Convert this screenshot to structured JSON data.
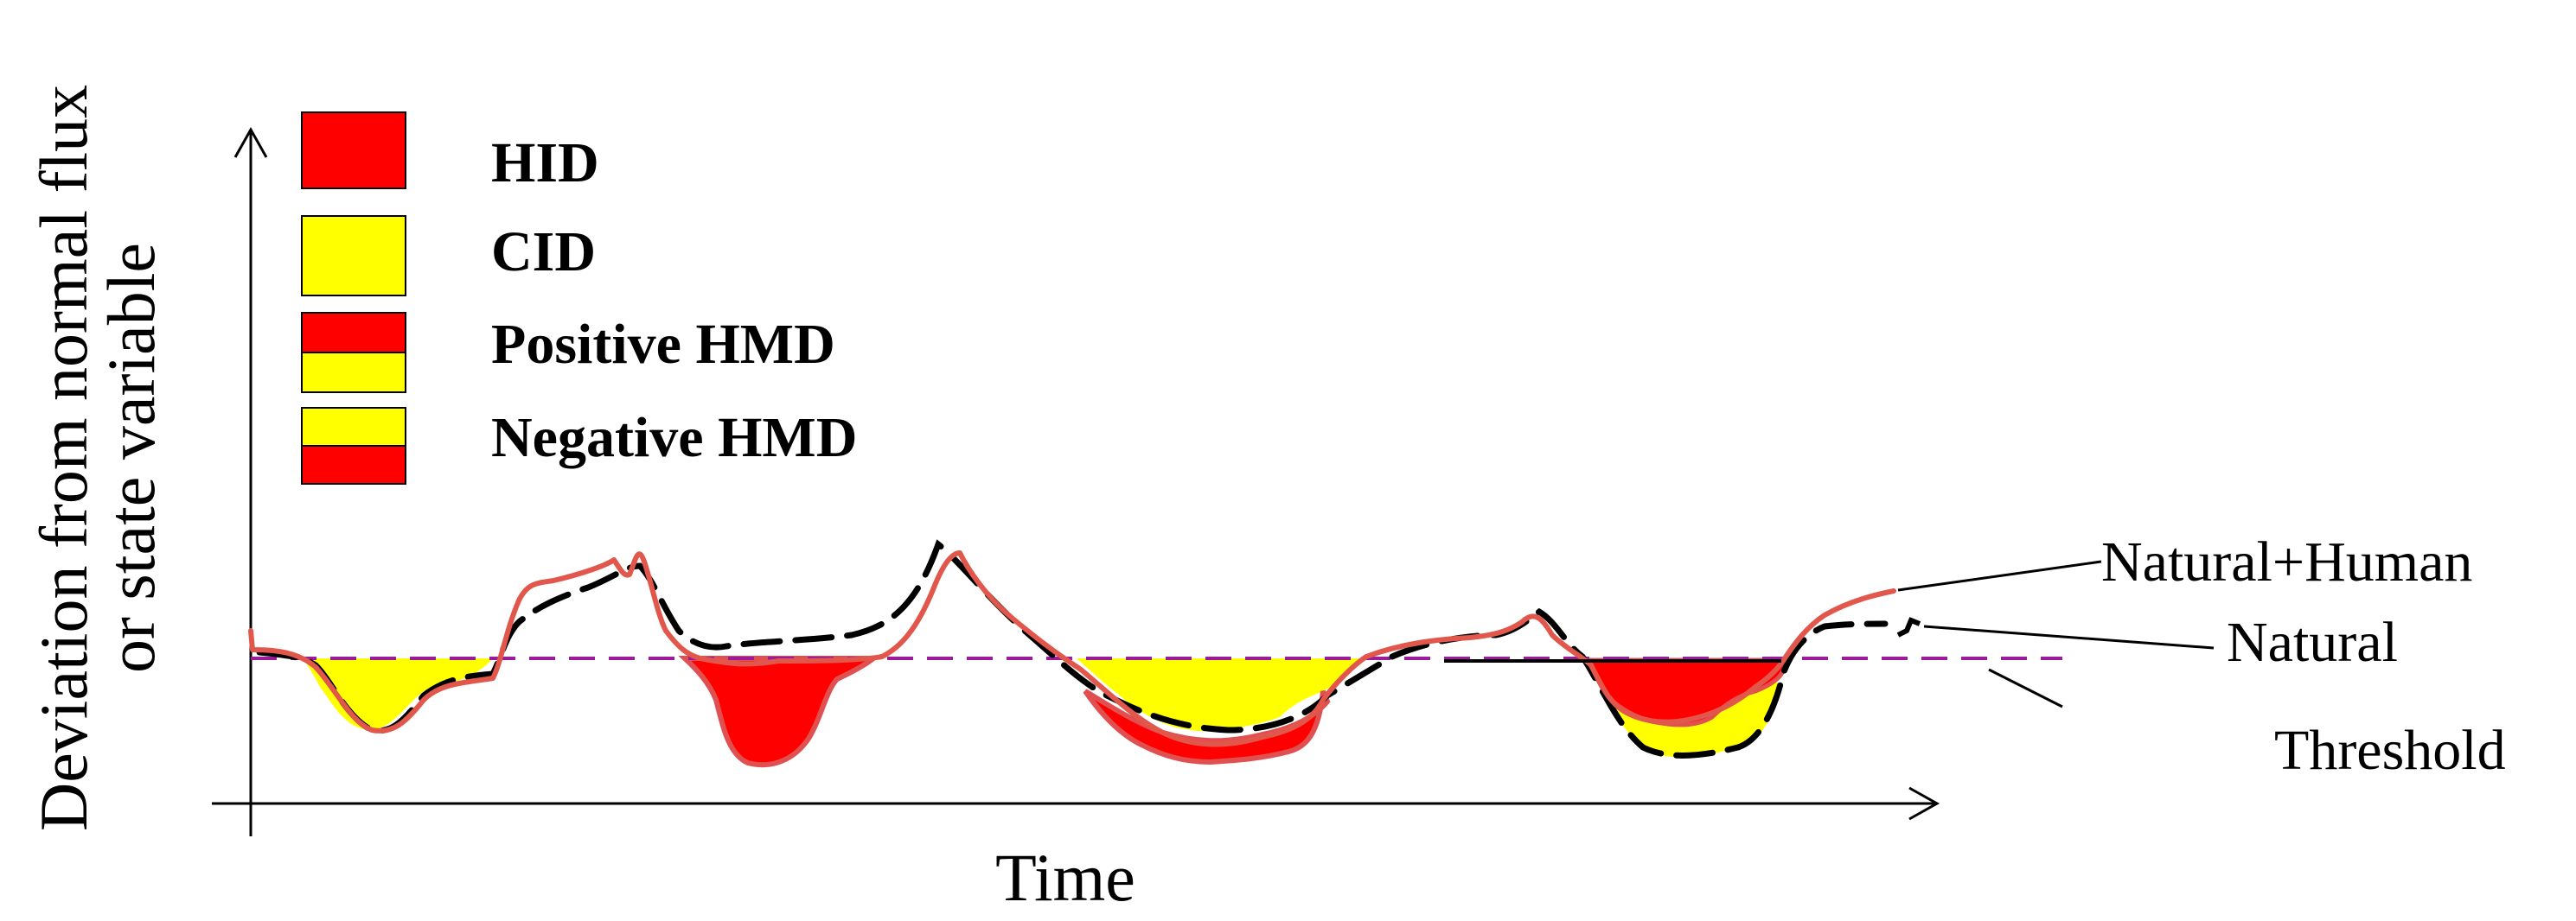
{
  "axes": {
    "y_label_line1": "Deviation from normal flux",
    "y_label_line2": "or state variable",
    "x_label": "Time"
  },
  "legend": [
    {
      "label": "HID",
      "swatch": "solid",
      "colors": [
        "#ff0000"
      ]
    },
    {
      "label": "CID",
      "swatch": "solid",
      "colors": [
        "#ffff00"
      ]
    },
    {
      "label": "Positive HMD",
      "swatch": "split",
      "colors": [
        "#ff0000",
        "#ffff00"
      ]
    },
    {
      "label": "Negative HMD",
      "swatch": "split",
      "colors": [
        "#ffff00",
        "#ff0000"
      ]
    }
  ],
  "line_labels": {
    "natural_human": "Natural+Human",
    "natural": "Natural",
    "threshold": "Threshold"
  },
  "colors": {
    "hid": "#ff0000",
    "cid": "#ffff00",
    "natural_human_line": "#e2574c",
    "natural_line": "#000000",
    "threshold_line": "#9b1b9b"
  }
}
